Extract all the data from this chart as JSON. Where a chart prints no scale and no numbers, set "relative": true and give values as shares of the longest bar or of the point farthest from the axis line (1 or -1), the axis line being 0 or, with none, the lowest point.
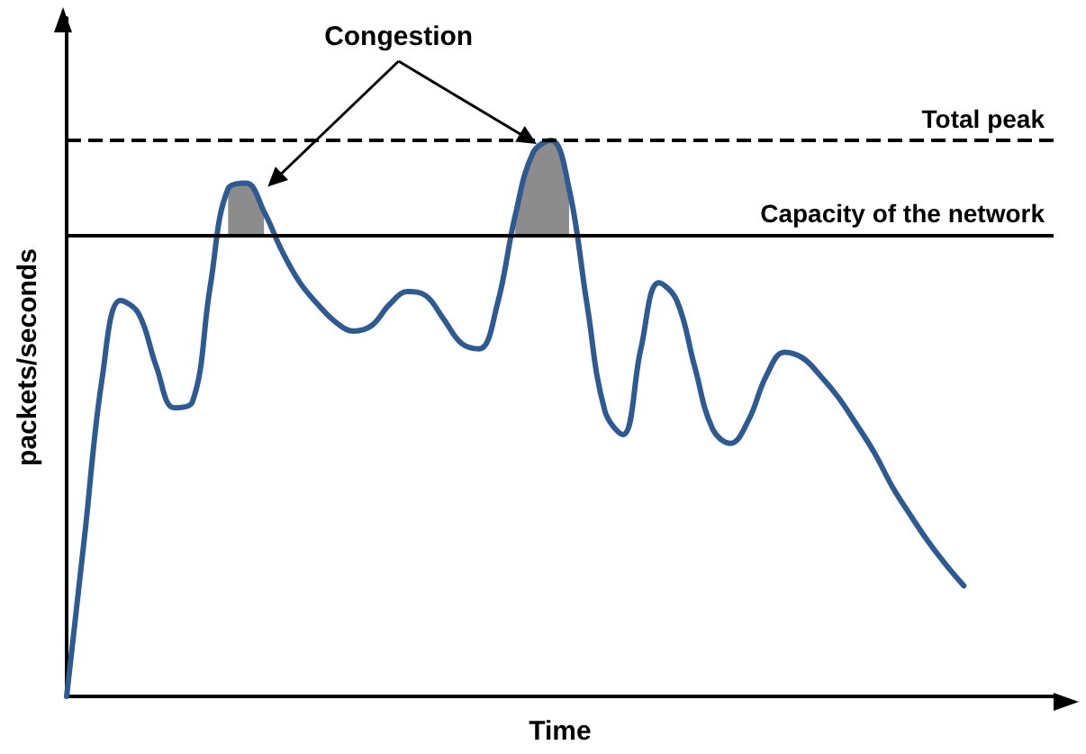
{
  "chart_data": {
    "type": "line",
    "relative": true,
    "xlabel": "Time",
    "ylabel": "packets/seconds",
    "grid": false,
    "marker": "none",
    "line_style": "solid",
    "categories": [
      null,
      null,
      null,
      null,
      null,
      null,
      null,
      null,
      null,
      null,
      null,
      null,
      null,
      null,
      null,
      null,
      null,
      null,
      null,
      null,
      null,
      null,
      null,
      null,
      null,
      null,
      null,
      null,
      null,
      null,
      null,
      null,
      null,
      null,
      null,
      null,
      null,
      null,
      null,
      null,
      null,
      null,
      null,
      null,
      null,
      null,
      null,
      null,
      null,
      null,
      null,
      null,
      null,
      null,
      null,
      null
    ],
    "series": [
      {
        "color": "#2e5a92",
        "values": [
          0,
          0.288,
          0.577,
          0.712,
          0.689,
          0.593,
          0.519,
          0.529,
          0.737,
          0.913,
          0.923,
          0.872,
          0.801,
          0.744,
          0.705,
          0.673,
          0.657,
          0.667,
          0.705,
          0.728,
          0.721,
          0.679,
          0.635,
          0.625,
          0.705,
          0.865,
          0.978,
          1,
          0.913,
          0.705,
          0.513,
          0.471,
          0.625,
          0.744,
          0.712,
          0.593,
          0.481,
          0.455,
          0.497,
          0.577,
          0.619,
          0.609,
          0.577,
          0.538,
          0.49,
          0.439,
          0.378,
          0.327,
          0.279,
          0.237,
          0.199,
          null,
          null,
          null,
          null,
          null
        ]
      },
      {
        "type": "area",
        "color": "#8c8c8c",
        "values": [
          null,
          null,
          null,
          null,
          null,
          null,
          null,
          null,
          null,
          0.913,
          0.923,
          0.872,
          null,
          null,
          null,
          null,
          null,
          null,
          null,
          null,
          null,
          null,
          null,
          null,
          null,
          0.865,
          0.978,
          1,
          0.913,
          null,
          null,
          null,
          null,
          null,
          null,
          null,
          null,
          null,
          null,
          null,
          null,
          null,
          null,
          null,
          null,
          null,
          null,
          null,
          null,
          null,
          null,
          null,
          null,
          null,
          null,
          null
        ]
      }
    ],
    "ref_lines": [
      {
        "axis": "y",
        "value": 1,
        "label": "Total peak",
        "line_style": "dashed",
        "color": "#000000"
      },
      {
        "axis": "y",
        "value": 0.83,
        "label": "Capacity of the network",
        "line_style": "solid",
        "color": "#000000"
      }
    ],
    "annotations": [
      "Congestion"
    ]
  }
}
